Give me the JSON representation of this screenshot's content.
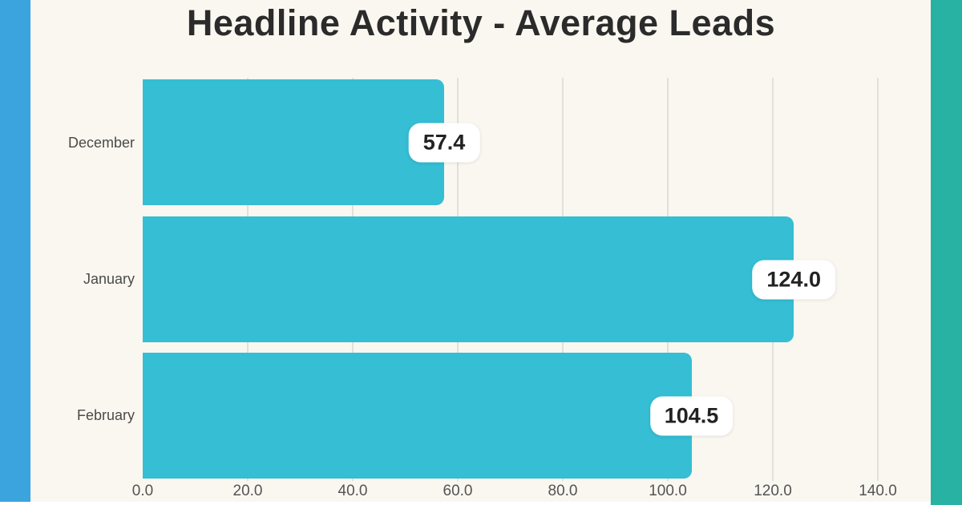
{
  "page": {
    "type": "chart-card"
  },
  "chart_data": {
    "type": "bar",
    "orientation": "horizontal",
    "title": "Headline Activity - Average Leads",
    "categories": [
      "December",
      "January",
      "February"
    ],
    "values": [
      57.4,
      124.0,
      104.5
    ],
    "value_labels": [
      "57.4",
      "124.0",
      "104.5"
    ],
    "x_ticks": [
      "0.0",
      "20.0",
      "40.0",
      "60.0",
      "80.0",
      "100.0",
      "120.0",
      "140.0"
    ],
    "x_tick_interval": 20,
    "xlim": [
      0,
      150
    ],
    "grid": true,
    "legend": false,
    "value_label_style": "white-rounded-pill-at-bar-end"
  },
  "colors": {
    "left_band": "#3ba3de",
    "right_band": "#27b2a3",
    "background": "#faf7f0",
    "bar": "#35bed4",
    "gridline": "#e2e0db",
    "title_text": "#2b2b2b",
    "category_text": "#4a4a4a",
    "tick_text": "#545454",
    "value_pill_bg": "#ffffff",
    "value_text": "#222222"
  }
}
